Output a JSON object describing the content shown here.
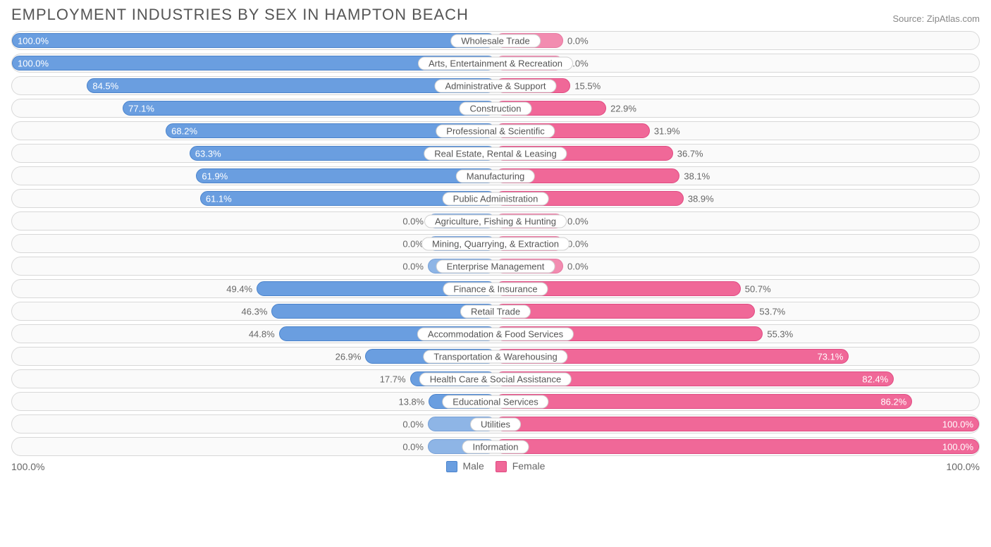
{
  "title": "EMPLOYMENT INDUSTRIES BY SEX IN HAMPTON BEACH",
  "source": "Source: ZipAtlas.com",
  "chart": {
    "type": "diverging-bar",
    "male_color": "#6a9ee0",
    "male_border": "#4a83cc",
    "female_color": "#f06898",
    "female_border": "#e04a82",
    "row_bg": "#fafafa",
    "row_border": "#d8d8d8",
    "label_bg": "#ffffff",
    "label_border": "#d0d0d0",
    "text_outside": "#666666",
    "text_inside": "#ffffff",
    "zero_stub_pct": 14,
    "rows": [
      {
        "label": "Wholesale Trade",
        "male": 100.0,
        "female": 0.0,
        "male_zero": false,
        "female_zero": true
      },
      {
        "label": "Arts, Entertainment & Recreation",
        "male": 100.0,
        "female": 0.0,
        "male_zero": false,
        "female_zero": true
      },
      {
        "label": "Administrative & Support",
        "male": 84.5,
        "female": 15.5,
        "male_zero": false,
        "female_zero": false
      },
      {
        "label": "Construction",
        "male": 77.1,
        "female": 22.9,
        "male_zero": false,
        "female_zero": false
      },
      {
        "label": "Professional & Scientific",
        "male": 68.2,
        "female": 31.9,
        "male_zero": false,
        "female_zero": false
      },
      {
        "label": "Real Estate, Rental & Leasing",
        "male": 63.3,
        "female": 36.7,
        "male_zero": false,
        "female_zero": false
      },
      {
        "label": "Manufacturing",
        "male": 61.9,
        "female": 38.1,
        "male_zero": false,
        "female_zero": false
      },
      {
        "label": "Public Administration",
        "male": 61.1,
        "female": 38.9,
        "male_zero": false,
        "female_zero": false
      },
      {
        "label": "Agriculture, Fishing & Hunting",
        "male": 0.0,
        "female": 0.0,
        "male_zero": true,
        "female_zero": true
      },
      {
        "label": "Mining, Quarrying, & Extraction",
        "male": 0.0,
        "female": 0.0,
        "male_zero": true,
        "female_zero": true
      },
      {
        "label": "Enterprise Management",
        "male": 0.0,
        "female": 0.0,
        "male_zero": true,
        "female_zero": true
      },
      {
        "label": "Finance & Insurance",
        "male": 49.4,
        "female": 50.7,
        "male_zero": false,
        "female_zero": false
      },
      {
        "label": "Retail Trade",
        "male": 46.3,
        "female": 53.7,
        "male_zero": false,
        "female_zero": false
      },
      {
        "label": "Accommodation & Food Services",
        "male": 44.8,
        "female": 55.3,
        "male_zero": false,
        "female_zero": false
      },
      {
        "label": "Transportation & Warehousing",
        "male": 26.9,
        "female": 73.1,
        "male_zero": false,
        "female_zero": false
      },
      {
        "label": "Health Care & Social Assistance",
        "male": 17.7,
        "female": 82.4,
        "male_zero": false,
        "female_zero": false
      },
      {
        "label": "Educational Services",
        "male": 13.8,
        "female": 86.2,
        "male_zero": false,
        "female_zero": false
      },
      {
        "label": "Utilities",
        "male": 0.0,
        "female": 100.0,
        "male_zero": true,
        "female_zero": false
      },
      {
        "label": "Information",
        "male": 0.0,
        "female": 100.0,
        "male_zero": true,
        "female_zero": false
      }
    ]
  },
  "axis": {
    "left": "100.0%",
    "right": "100.0%"
  },
  "legend": {
    "male": "Male",
    "female": "Female"
  }
}
